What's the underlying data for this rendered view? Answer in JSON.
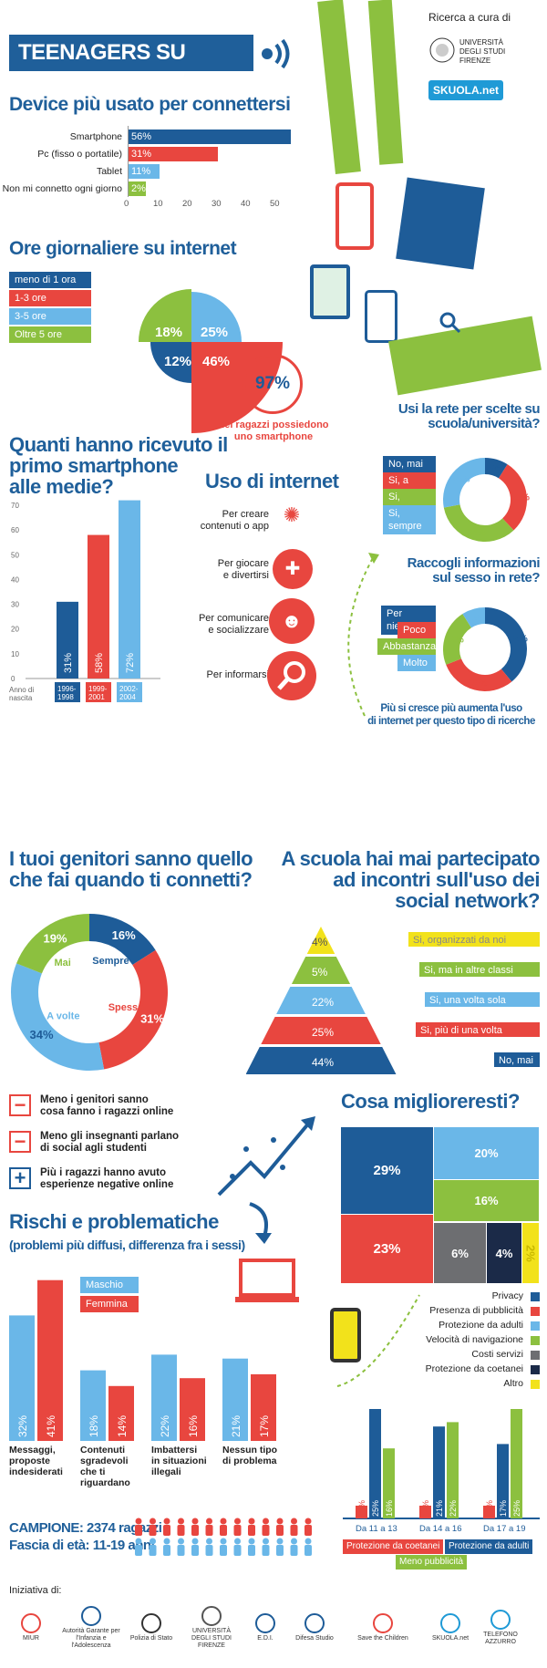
{
  "header": {
    "title": "TEENAGERS SU INTERNET",
    "research_by": "Ricerca a cura di",
    "university": "UNIVERSITÀ DEGLI STUDI FIRENZE",
    "skuola": "SKUOLA.net"
  },
  "device": {
    "title": "Device più usato per connettersi",
    "chart_data": {
      "type": "bar",
      "categories": [
        "Smartphone",
        "Pc (fisso o portatile)",
        "Tablet",
        "Non mi connetto ogni giorno"
      ],
      "values": [
        56,
        31,
        11,
        2
      ],
      "value_labels": [
        "56%",
        "31%",
        "11%",
        "2%"
      ],
      "xticks": [
        "0",
        "10",
        "20",
        "30",
        "40",
        "50"
      ],
      "xlim": [
        0,
        60
      ],
      "colors": [
        "#1e5c98",
        "#e8463f",
        "#6ab7e8",
        "#8cc03f"
      ]
    }
  },
  "hours": {
    "title": "Ore giornaliere su internet",
    "legend": [
      "meno di 1 ora",
      "1-3 ore",
      "3-5 ore",
      "Oltre 5 ore"
    ],
    "chart_data": {
      "type": "pie",
      "labels": [
        "meno di 1 ora",
        "1-3 ore",
        "3-5 ore",
        "Oltre 5 ore"
      ],
      "values": [
        12,
        46,
        25,
        18
      ],
      "value_labels": [
        "12%",
        "46%",
        "25%",
        "18%"
      ]
    }
  },
  "smartphone_own": {
    "value": "97%",
    "text1": "dei ragazzi possiedono",
    "text2": "uno smartphone"
  },
  "first_phone": {
    "title": [
      "Quanti hanno ricevuto il",
      "primo smartphone",
      "alle medie?"
    ],
    "xlabel": [
      "Anno di",
      "nascita"
    ],
    "chart_data": {
      "type": "bar",
      "categories": [
        "1996-1998",
        "1999-2001",
        "2002-2004"
      ],
      "category_lines": [
        [
          "1996-",
          "1998"
        ],
        [
          "1999-",
          "2001"
        ],
        [
          "2002-",
          "2004"
        ]
      ],
      "values": [
        31,
        58,
        72
      ],
      "value_labels": [
        "31%",
        "58%",
        "72%"
      ],
      "yticks": [
        "0",
        "10",
        "20",
        "30",
        "40",
        "50",
        "60",
        "70"
      ],
      "ylim": [
        0,
        70
      ],
      "colors": [
        "#1e5c98",
        "#e8463f",
        "#6ab7e8"
      ]
    }
  },
  "usage": {
    "title": "Uso di internet",
    "items": [
      [
        "Per creare",
        "contenuti o app"
      ],
      [
        "Per giocare",
        "e divertirsi"
      ],
      [
        "Per comunicare",
        "e socializzare"
      ],
      [
        "Per informarsi"
      ]
    ]
  },
  "school_choice": {
    "title": [
      "Usi la rete per scelte su",
      "scuola/università?"
    ],
    "legend": [
      "No, mai",
      "Si, a volte",
      "Si, spesso",
      "Si, sempre"
    ],
    "chart_data": {
      "type": "pie",
      "labels": [
        "No, mai",
        "Si, a volte",
        "Si, spesso",
        "Si, sempre"
      ],
      "values": [
        9,
        29,
        34,
        28
      ],
      "value_labels": [
        "9%",
        "29%",
        "34%",
        "28%"
      ]
    }
  },
  "sex_info": {
    "title": [
      "Raccogli informazioni",
      "sul sesso in rete?"
    ],
    "legend": [
      "Per niente",
      "Poco",
      "Abbastanza",
      "Molto"
    ],
    "chart_data": {
      "type": "pie",
      "labels": [
        "Per niente",
        "Poco",
        "Abbastanza",
        "Molto"
      ],
      "values": [
        39,
        30,
        22,
        9
      ],
      "value_labels": [
        "39%",
        "30%",
        "22%",
        "9%"
      ]
    },
    "note": [
      "Più si cresce più aumenta l'uso",
      "di internet per questo tipo di ricerche"
    ]
  },
  "parents": {
    "title": [
      "I tuoi genitori sanno quello",
      "che fai quando ti connetti?"
    ],
    "chart_data": {
      "type": "pie",
      "labels": [
        "Sempre",
        "Spesso",
        "A volte",
        "Mai"
      ],
      "values": [
        16,
        31,
        34,
        19
      ],
      "value_labels": [
        "16%",
        "31%",
        "34%",
        "19%"
      ]
    }
  },
  "school_meet": {
    "title": [
      "A scuola hai mai partecipato",
      "ad incontri sull'uso dei",
      "social network?"
    ],
    "chart_data": {
      "type": "bar",
      "categories": [
        "Si, organizzati da noi",
        "Si, ma in altre classi",
        "Si, una volta sola",
        "Si, più di una volta",
        "No, mai"
      ],
      "values": [
        4,
        5,
        22,
        25,
        44
      ],
      "value_labels": [
        "4%",
        "5%",
        "22%",
        "25%",
        "44%"
      ]
    }
  },
  "facts": [
    {
      "sign": "−",
      "text": [
        "Meno i genitori sanno",
        "cosa fanno i ragazzi online"
      ]
    },
    {
      "sign": "−",
      "text": [
        "Meno gli insegnanti parlano",
        "di social agli studenti"
      ]
    },
    {
      "sign": "+",
      "text": [
        "Più i ragazzi hanno avuto",
        "esperienze negative online"
      ]
    }
  ],
  "improve": {
    "title": "Cosa miglioreresti?",
    "chart_data": {
      "type": "heatmap",
      "labels": [
        "Privacy",
        "Presenza di pubblicità",
        "Protezione da adulti",
        "Velocità di navigazione",
        "Costi servizi",
        "Protezione da coetanei",
        "Altro"
      ],
      "values": [
        29,
        23,
        20,
        16,
        6,
        4,
        2
      ],
      "value_labels": [
        "29%",
        "23%",
        "20%",
        "16%",
        "6%",
        "4%",
        "2%"
      ],
      "colors": [
        "#1e5c98",
        "#e8463f",
        "#6ab7e8",
        "#8cc03f",
        "#6d6e71",
        "#1b2a48",
        "#f2e21b"
      ]
    }
  },
  "age_needs": {
    "chart_data": {
      "type": "bar",
      "categories": [
        "Da 11 a 13",
        "Da 14 a 16",
        "Da 17 a 19"
      ],
      "series": [
        {
          "name": "Protezione da coetanei",
          "values": [
            13,
            14,
            12
          ],
          "value_labels": [
            "13%",
            "14%",
            "12%"
          ]
        },
        {
          "name": "Protezione da adulti",
          "values": [
            25,
            21,
            17
          ],
          "value_labels": [
            "25%",
            "21%",
            "17%"
          ]
        },
        {
          "name": "Meno pubblicità",
          "values": [
            16,
            22,
            25
          ],
          "value_labels": [
            "16%",
            "22%",
            "25%"
          ]
        }
      ]
    }
  },
  "risks": {
    "title": "Rischi e problematiche",
    "subtitle": "(problemi più diffusi, differenza fra i sessi)",
    "chart_data": {
      "type": "bar",
      "categories": [
        "Messaggi, proposte indesiderati",
        "Contenuti sgradevoli che ti riguardano",
        "Imbattersi in situazioni illegali",
        "Nessun tipo di problema"
      ],
      "category_lines": [
        [
          "Messaggi,",
          "proposte",
          "indesiderati"
        ],
        [
          "Contenuti",
          "sgradevoli",
          "che ti",
          "riguardano"
        ],
        [
          "Imbattersi",
          "in situazioni",
          "illegali"
        ],
        [
          "Nessun tipo",
          "di problema"
        ]
      ],
      "series": [
        {
          "name": "Maschio",
          "values": [
            32,
            18,
            22,
            21
          ],
          "value_labels": [
            "32%",
            "18%",
            "22%",
            "21%"
          ]
        },
        {
          "name": "Femmina",
          "values": [
            41,
            14,
            16,
            17
          ],
          "value_labels": [
            "41%",
            "14%",
            "16%",
            "17%"
          ]
        }
      ]
    }
  },
  "sample": {
    "line1": "CAMPIONE: 2374 ragazzi",
    "line2": "Fascia di età: 11-19 anni"
  },
  "footer": {
    "initiative": "Iniziativa di:",
    "logos": [
      "MIUR",
      "Autorità Garante per l'Infanzia e l'Adolescenza",
      "Polizia di Stato",
      "UNIVERSITÀ DEGLI STUDI FIRENZE",
      "E.D.I.",
      "Difesa Studio",
      "Save the Children",
      "SKUOLA.net",
      "TELEFONO AZZURRO"
    ]
  }
}
